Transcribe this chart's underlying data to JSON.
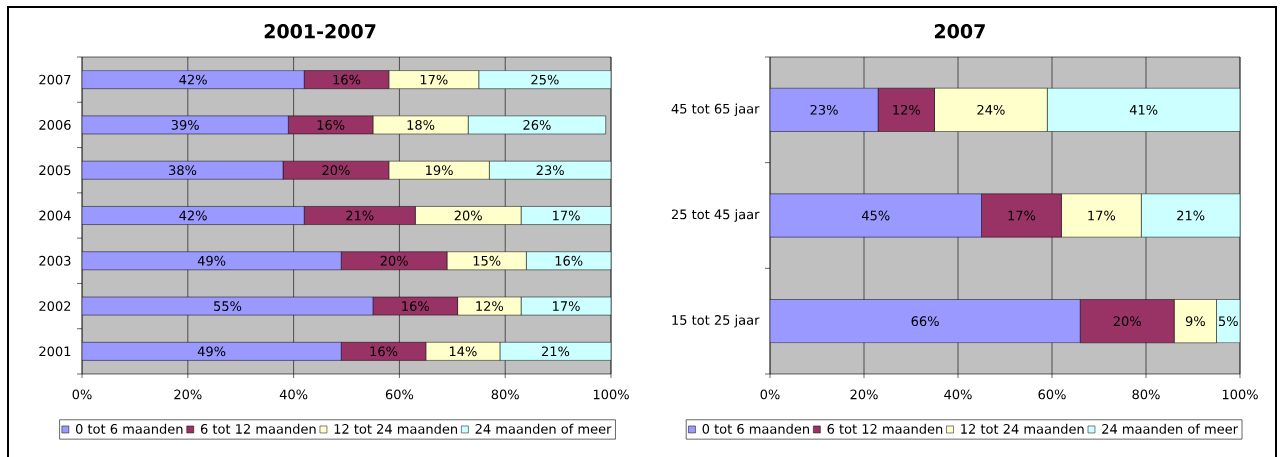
{
  "chart_data": [
    {
      "type": "bar",
      "orientation": "horizontal",
      "stacked": true,
      "title": "2001-2007",
      "categories": [
        "2007",
        "2006",
        "2005",
        "2004",
        "2003",
        "2002",
        "2001"
      ],
      "series": [
        {
          "name": "0 tot 6 maanden",
          "color": "#9999ff",
          "values": [
            42,
            39,
            38,
            42,
            49,
            55,
            49
          ],
          "value_labels": [
            "42%",
            "39%",
            "38%",
            "42%",
            "49%",
            "55%",
            "49%"
          ]
        },
        {
          "name": "6 tot 12 maanden",
          "color": "#993366",
          "values": [
            16,
            16,
            20,
            21,
            20,
            16,
            16
          ],
          "value_labels": [
            "16%",
            "16%",
            "20%",
            "21%",
            "20%",
            "16%",
            "16%"
          ]
        },
        {
          "name": "12 tot 24 maanden",
          "color": "#ffffcc",
          "values": [
            17,
            18,
            19,
            20,
            15,
            12,
            14
          ],
          "value_labels": [
            "17%",
            "18%",
            "19%",
            "20%",
            "15%",
            "12%",
            "14%"
          ]
        },
        {
          "name": "24 maanden of meer",
          "color": "#ccffff",
          "values": [
            25,
            26,
            23,
            17,
            16,
            17,
            21
          ],
          "value_labels": [
            "25%",
            "26%",
            "23%",
            "17%",
            "16%",
            "17%",
            "21%"
          ]
        }
      ],
      "xlim": [
        0,
        100
      ],
      "xticks": [
        {
          "value": 0,
          "label": "0%"
        },
        {
          "value": 20,
          "label": "20%"
        },
        {
          "value": 40,
          "label": "40%"
        },
        {
          "value": 60,
          "label": "60%"
        },
        {
          "value": 80,
          "label": "80%"
        },
        {
          "value": 100,
          "label": "100%"
        }
      ],
      "grid": "x",
      "legend": "bottom"
    },
    {
      "type": "bar",
      "orientation": "horizontal",
      "stacked": true,
      "title": "2007",
      "categories": [
        "45 tot 65 jaar",
        "25 tot 45 jaar",
        "15 tot 25 jaar"
      ],
      "series": [
        {
          "name": "0 tot 6 maanden",
          "color": "#9999ff",
          "values": [
            23,
            45,
            66
          ],
          "value_labels": [
            "23%",
            "45%",
            "66%"
          ]
        },
        {
          "name": "6 tot 12 maanden",
          "color": "#993366",
          "values": [
            12,
            17,
            20
          ],
          "value_labels": [
            "12%",
            "17%",
            "20%"
          ]
        },
        {
          "name": "12 tot 24 maanden",
          "color": "#ffffcc",
          "values": [
            24,
            17,
            9
          ],
          "value_labels": [
            "24%",
            "17%",
            "9%"
          ]
        },
        {
          "name": "24 maanden of meer",
          "color": "#ccffff",
          "values": [
            41,
            21,
            5
          ],
          "value_labels": [
            "41%",
            "21%",
            "5%"
          ]
        }
      ],
      "xlim": [
        0,
        100
      ],
      "xticks": [
        {
          "value": 0,
          "label": "0%"
        },
        {
          "value": 20,
          "label": "20%"
        },
        {
          "value": 40,
          "label": "40%"
        },
        {
          "value": 60,
          "label": "60%"
        },
        {
          "value": 80,
          "label": "80%"
        },
        {
          "value": 100,
          "label": "100%"
        }
      ],
      "grid": "x",
      "legend": "bottom"
    }
  ]
}
